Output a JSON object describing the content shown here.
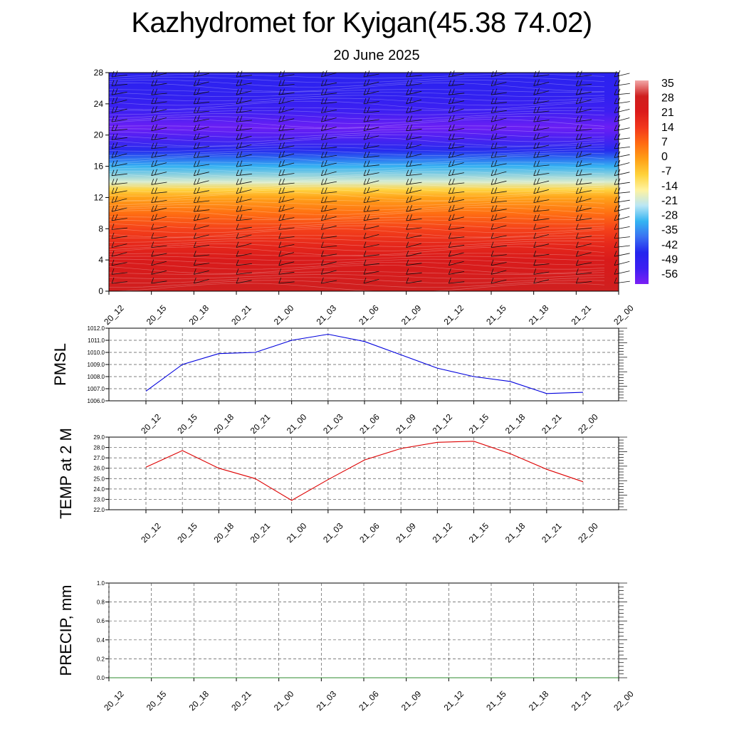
{
  "header": {
    "title": "Kazhydromet for Kyigan(45.38 74.02)",
    "subtitle": "20 June 2025"
  },
  "chart_data": [
    {
      "type": "heatmap",
      "title": "",
      "xlabel": "",
      "ylabel": "",
      "x_labels": [
        "20_12",
        "20_15",
        "20_18",
        "20_21",
        "21_00",
        "21_03",
        "21_06",
        "21_09",
        "21_12",
        "21_15",
        "21_18",
        "21_21",
        "22_00"
      ],
      "y_ticks": [
        0,
        4,
        8,
        12,
        16,
        20,
        24,
        28
      ],
      "ylim": [
        0,
        28
      ],
      "colorbar": {
        "labels": [
          "35",
          "28",
          "21",
          "14",
          "7",
          "0",
          "-7",
          "-14",
          "-21",
          "-28",
          "-35",
          "-42",
          "-49",
          "-56"
        ],
        "range": [
          -63,
          42
        ],
        "colors": [
          "#7b1ff5",
          "#3d1ff2",
          "#2424ee",
          "#3a70f2",
          "#34b4f2",
          "#b9e6f5",
          "#fff3a0",
          "#ffd23a",
          "#ff9f16",
          "#ff6a12",
          "#f2371c",
          "#db1a1a",
          "#cf1f1f",
          "#f2a8a8"
        ]
      },
      "temperature_profile": [
        {
          "height": 0,
          "value": 34
        },
        {
          "height": 2,
          "value": 30
        },
        {
          "height": 4,
          "value": 27
        },
        {
          "height": 6,
          "value": 22
        },
        {
          "height": 8,
          "value": 16
        },
        {
          "height": 10,
          "value": 9
        },
        {
          "height": 12,
          "value": 1
        },
        {
          "height": 13,
          "value": -7
        },
        {
          "height": 14,
          "value": -19
        },
        {
          "height": 16,
          "value": -31
        },
        {
          "height": 18,
          "value": -46
        },
        {
          "height": 20,
          "value": -58
        },
        {
          "height": 21,
          "value": -61
        },
        {
          "height": 23,
          "value": -55
        },
        {
          "height": 25,
          "value": -51
        },
        {
          "height": 28,
          "value": -49
        }
      ],
      "wind_barbs": true,
      "grid": false
    },
    {
      "type": "line",
      "ylabel": "PMSL",
      "x_labels": [
        "20_12",
        "20_15",
        "20_18",
        "20_21",
        "21_00",
        "21_03",
        "21_06",
        "21_09",
        "21_12",
        "21_15",
        "21_18",
        "21_21",
        "22_00"
      ],
      "y_ticks": [
        "1006.0",
        "1007.0",
        "1008.0",
        "1009.0",
        "1010.0",
        "1011.0",
        "1012.0"
      ],
      "ylim": [
        1006,
        1012
      ],
      "series": [
        {
          "color": "#0000dd",
          "values": [
            1006.8,
            1009.0,
            1009.9,
            1010.0,
            1011.0,
            1011.5,
            1010.9,
            1009.8,
            1008.7,
            1008.0,
            1007.6,
            1006.6,
            1006.7
          ]
        }
      ],
      "grid": true
    },
    {
      "type": "line",
      "ylabel": "TEMP at 2 M",
      "x_labels": [
        "20_12",
        "20_15",
        "20_18",
        "20_21",
        "21_00",
        "21_03",
        "21_06",
        "21_09",
        "21_12",
        "21_15",
        "21_18",
        "21_21",
        "22_00"
      ],
      "y_ticks": [
        "22.0",
        "23.0",
        "24.0",
        "25.0",
        "26.0",
        "27.0",
        "28.0",
        "29.0"
      ],
      "ylim": [
        22,
        29
      ],
      "series": [
        {
          "color": "#dd0000",
          "values": [
            26.1,
            27.7,
            26.0,
            25.0,
            22.9,
            24.9,
            26.8,
            27.9,
            28.5,
            28.6,
            27.4,
            25.9,
            24.7
          ]
        }
      ],
      "grid": true
    },
    {
      "type": "line",
      "ylabel": "PRECIP, mm",
      "x_labels": [
        "20_12",
        "20_15",
        "20_18",
        "20_21",
        "21_00",
        "21_03",
        "21_06",
        "21_09",
        "21_12",
        "21_15",
        "21_18",
        "21_21",
        "22_00"
      ],
      "y_ticks": [
        "0.0",
        "0.2",
        "0.4",
        "0.6",
        "0.8",
        "1.0"
      ],
      "ylim": [
        0,
        1
      ],
      "series": [
        {
          "color": "#2e8b2e",
          "values": [
            0,
            0,
            0,
            0,
            0,
            0,
            0,
            0,
            0,
            0,
            0,
            0,
            0
          ]
        }
      ],
      "grid": true
    }
  ]
}
